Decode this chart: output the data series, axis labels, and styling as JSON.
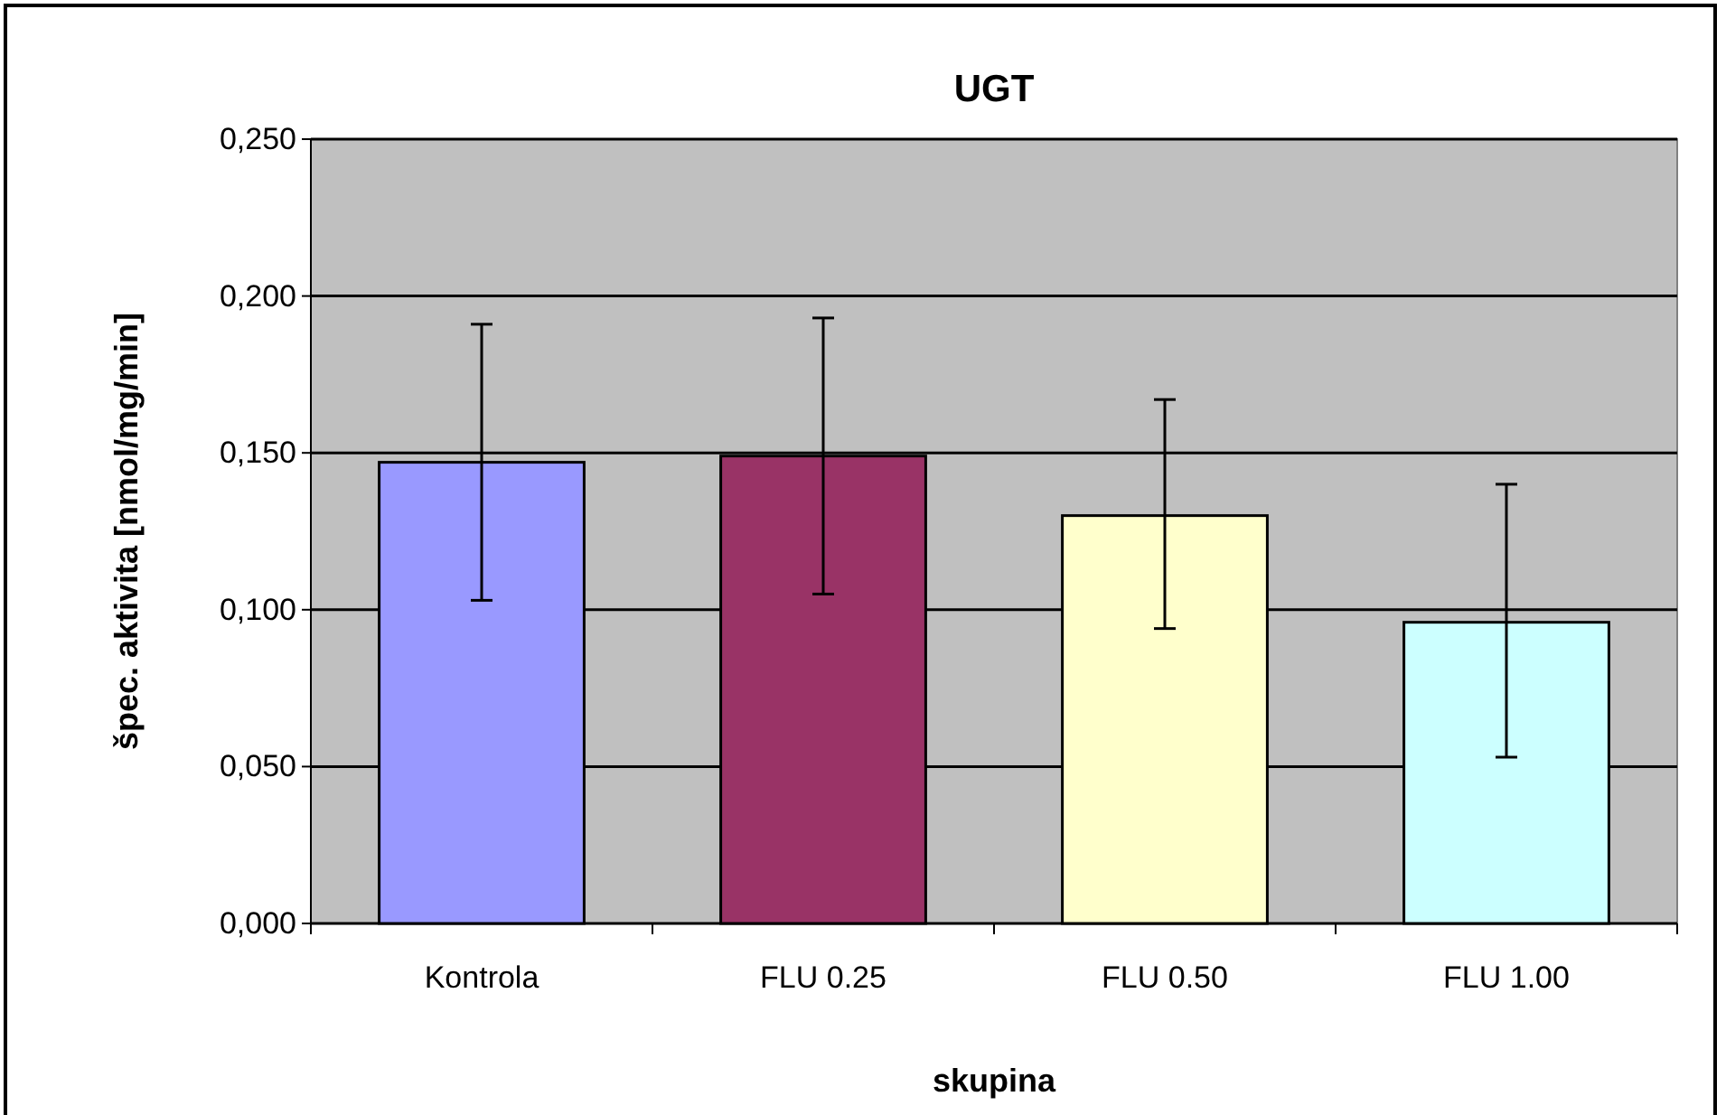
{
  "chart_data": {
    "type": "bar",
    "title": "UGT",
    "xlabel": "skupina",
    "ylabel": "špec. aktivita [nmol/mg/min]",
    "categories": [
      "Kontrola",
      "FLU 0.25",
      "FLU 0.50",
      "FLU 1.00"
    ],
    "values": [
      0.147,
      0.149,
      0.13,
      0.096
    ],
    "colors": [
      "#9999ff",
      "#993366",
      "#ffffcc",
      "#ccffff"
    ],
    "errors": [
      [
        0.103,
        0.191
      ],
      [
        0.105,
        0.193
      ],
      [
        0.094,
        0.167
      ],
      [
        0.053,
        0.14
      ]
    ],
    "ylim": [
      0,
      0.25
    ],
    "yticks": [
      {
        "value": 0,
        "label": "0,000"
      },
      {
        "value": 0.05,
        "label": "0,050"
      },
      {
        "value": 0.1,
        "label": "0,100"
      },
      {
        "value": 0.15,
        "label": "0,150"
      },
      {
        "value": 0.2,
        "label": "0,200"
      },
      {
        "value": 0.25,
        "label": "0,250"
      }
    ],
    "grid": "y"
  }
}
